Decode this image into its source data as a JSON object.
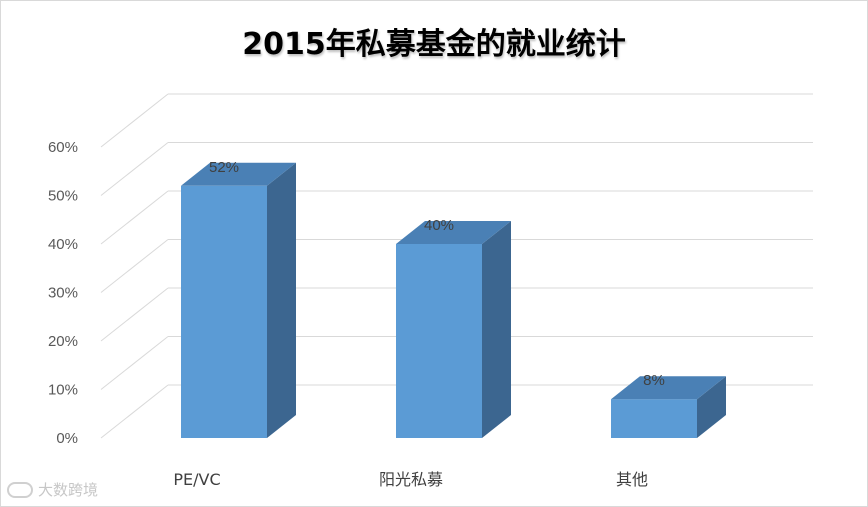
{
  "chart_data": {
    "type": "bar",
    "title": "2015年私募基金的就业统计",
    "categories": [
      "PE/VC",
      "阳光私募",
      "其他"
    ],
    "values": [
      52,
      40,
      8
    ],
    "data_labels": [
      "52%",
      "40%",
      "8%"
    ],
    "ylim": [
      0,
      60
    ],
    "yticks": [
      "0%",
      "10%",
      "20%",
      "30%",
      "40%",
      "50%",
      "60%"
    ],
    "xlabel": "",
    "ylabel": "",
    "grid": true,
    "style": "3d-column",
    "colors": {
      "front": "#5b9bd5",
      "side": "#3c6690",
      "top": "#4a80b5",
      "grid": "#d9d9d9"
    }
  },
  "watermark": {
    "text": "大数跨境"
  }
}
